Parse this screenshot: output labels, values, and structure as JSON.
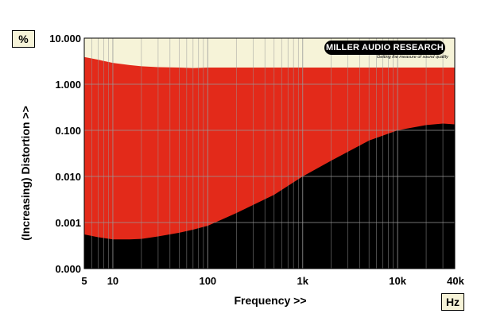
{
  "chart_data": {
    "type": "area",
    "xlabel": "Frequency >>",
    "ylabel": "(Increasing) Distortion >>",
    "x_unit": "Hz",
    "y_unit": "%",
    "x_scale": "log",
    "y_scale": "log",
    "xlim": [
      5,
      40000
    ],
    "ylim": [
      0.0001,
      10
    ],
    "x_ticks": [
      {
        "value": 5,
        "label": "5"
      },
      {
        "value": 10,
        "label": "10"
      },
      {
        "value": 100,
        "label": "100"
      },
      {
        "value": 1000,
        "label": "1k"
      },
      {
        "value": 10000,
        "label": "10k"
      },
      {
        "value": 40000,
        "label": "40k"
      }
    ],
    "y_ticks": [
      {
        "value": 0.0001,
        "label": "0.000"
      },
      {
        "value": 0.001,
        "label": "0.001"
      },
      {
        "value": 0.01,
        "label": "0.010"
      },
      {
        "value": 0.1,
        "label": "0.100"
      },
      {
        "value": 1,
        "label": "1.000"
      },
      {
        "value": 10,
        "label": "10.000"
      }
    ],
    "grid": true,
    "series": [
      {
        "color": "#e32a1a",
        "x": [
          5,
          7,
          10,
          15,
          20,
          30,
          50,
          70,
          100,
          200,
          500,
          1000,
          2000,
          5000,
          10000,
          20000,
          40000
        ],
        "values": [
          3.9,
          3.4,
          2.9,
          2.6,
          2.45,
          2.35,
          2.3,
          2.25,
          2.3,
          2.3,
          2.3,
          2.3,
          2.3,
          2.3,
          2.3,
          2.3,
          2.3
        ]
      },
      {
        "color": "#000000",
        "x": [
          5,
          7,
          10,
          15,
          20,
          30,
          50,
          70,
          100,
          200,
          500,
          1000,
          2000,
          5000,
          10000,
          20000,
          30000,
          40000
        ],
        "values": [
          0.00055,
          0.00048,
          0.00043,
          0.00043,
          0.00044,
          0.0005,
          0.0006,
          0.0007,
          0.00085,
          0.0016,
          0.004,
          0.01,
          0.022,
          0.06,
          0.1,
          0.13,
          0.14,
          0.135
        ]
      }
    ],
    "colors": {
      "background_band": "#f6f3d8",
      "grid": "#999999",
      "axis": "#000000"
    }
  },
  "logo": {
    "name": "MILLER AUDIO RESEARCH",
    "tagline": "Getting the measure of sound quality"
  }
}
